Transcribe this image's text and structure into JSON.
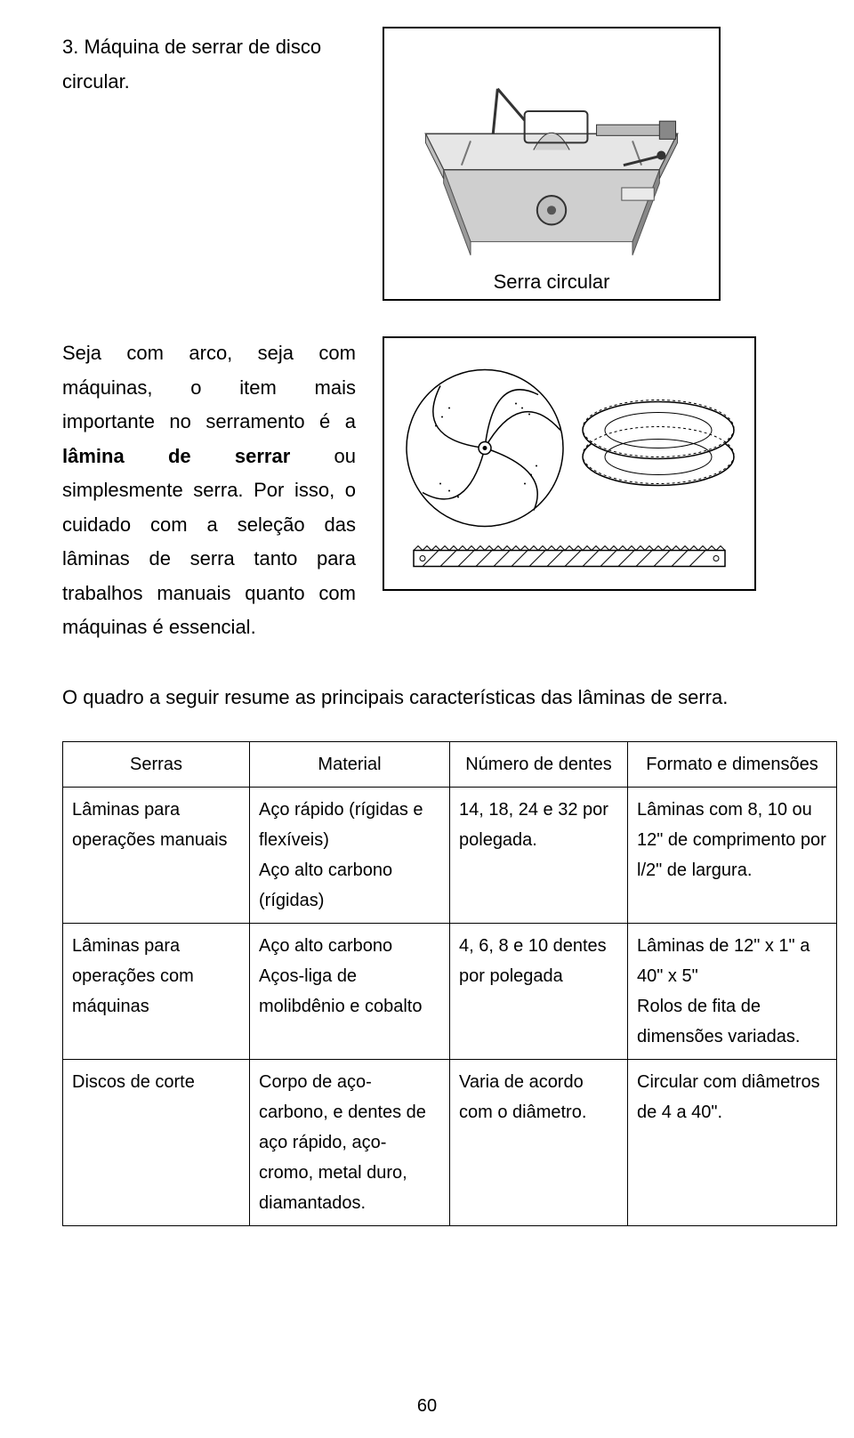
{
  "top_item": "3.  Máquina de serrar de disco circular.",
  "figure_caption": "Serra circular",
  "mid_paragraph": "Seja com arco, seja com máquinas, o item mais importante no serramento é a lâmina de serrar ou simplesmente serra. Por isso, o cuidado com a seleção das lâminas de serra tanto para trabalhos manuais quanto com máquinas é essencial.",
  "bold_word": "lâmina de serrar",
  "summary_paragraph": "O quadro a seguir resume as principais características das lâminas de serra.",
  "table": {
    "headers": [
      "Serras",
      "Material",
      "Número de dentes",
      "Formato e dimensões"
    ],
    "rows": [
      {
        "c1": "Lâminas para operações manuais",
        "c2": "Aço rápido (rígidas e flexíveis)\nAço alto carbono (rígidas)",
        "c3": "14, 18, 24 e 32 por polegada.",
        "c4": "Lâminas com 8, 10 ou 12\" de comprimento por l/2\" de largura."
      },
      {
        "c1": "Lâminas para operações com máquinas",
        "c2": "Aço alto carbono\nAços-liga de molibdênio e cobalto",
        "c3": "4, 6, 8 e 10 dentes por polegada",
        "c4": "Lâminas de 12\" x  1\" a 40\" x 5\"\nRolos de fita de dimensões variadas."
      },
      {
        "c1": "Discos de corte",
        "c2": "Corpo de aço-carbono, e dentes de aço rápido, aço-cromo, metal duro, diamantados.",
        "c3": "Varia de acordo com o diâmetro.",
        "c4": "Circular com diâmetros de 4 a 40\"."
      }
    ]
  },
  "page_number": "60",
  "colors": {
    "border": "#000000",
    "text": "#000000",
    "bg": "#ffffff"
  }
}
